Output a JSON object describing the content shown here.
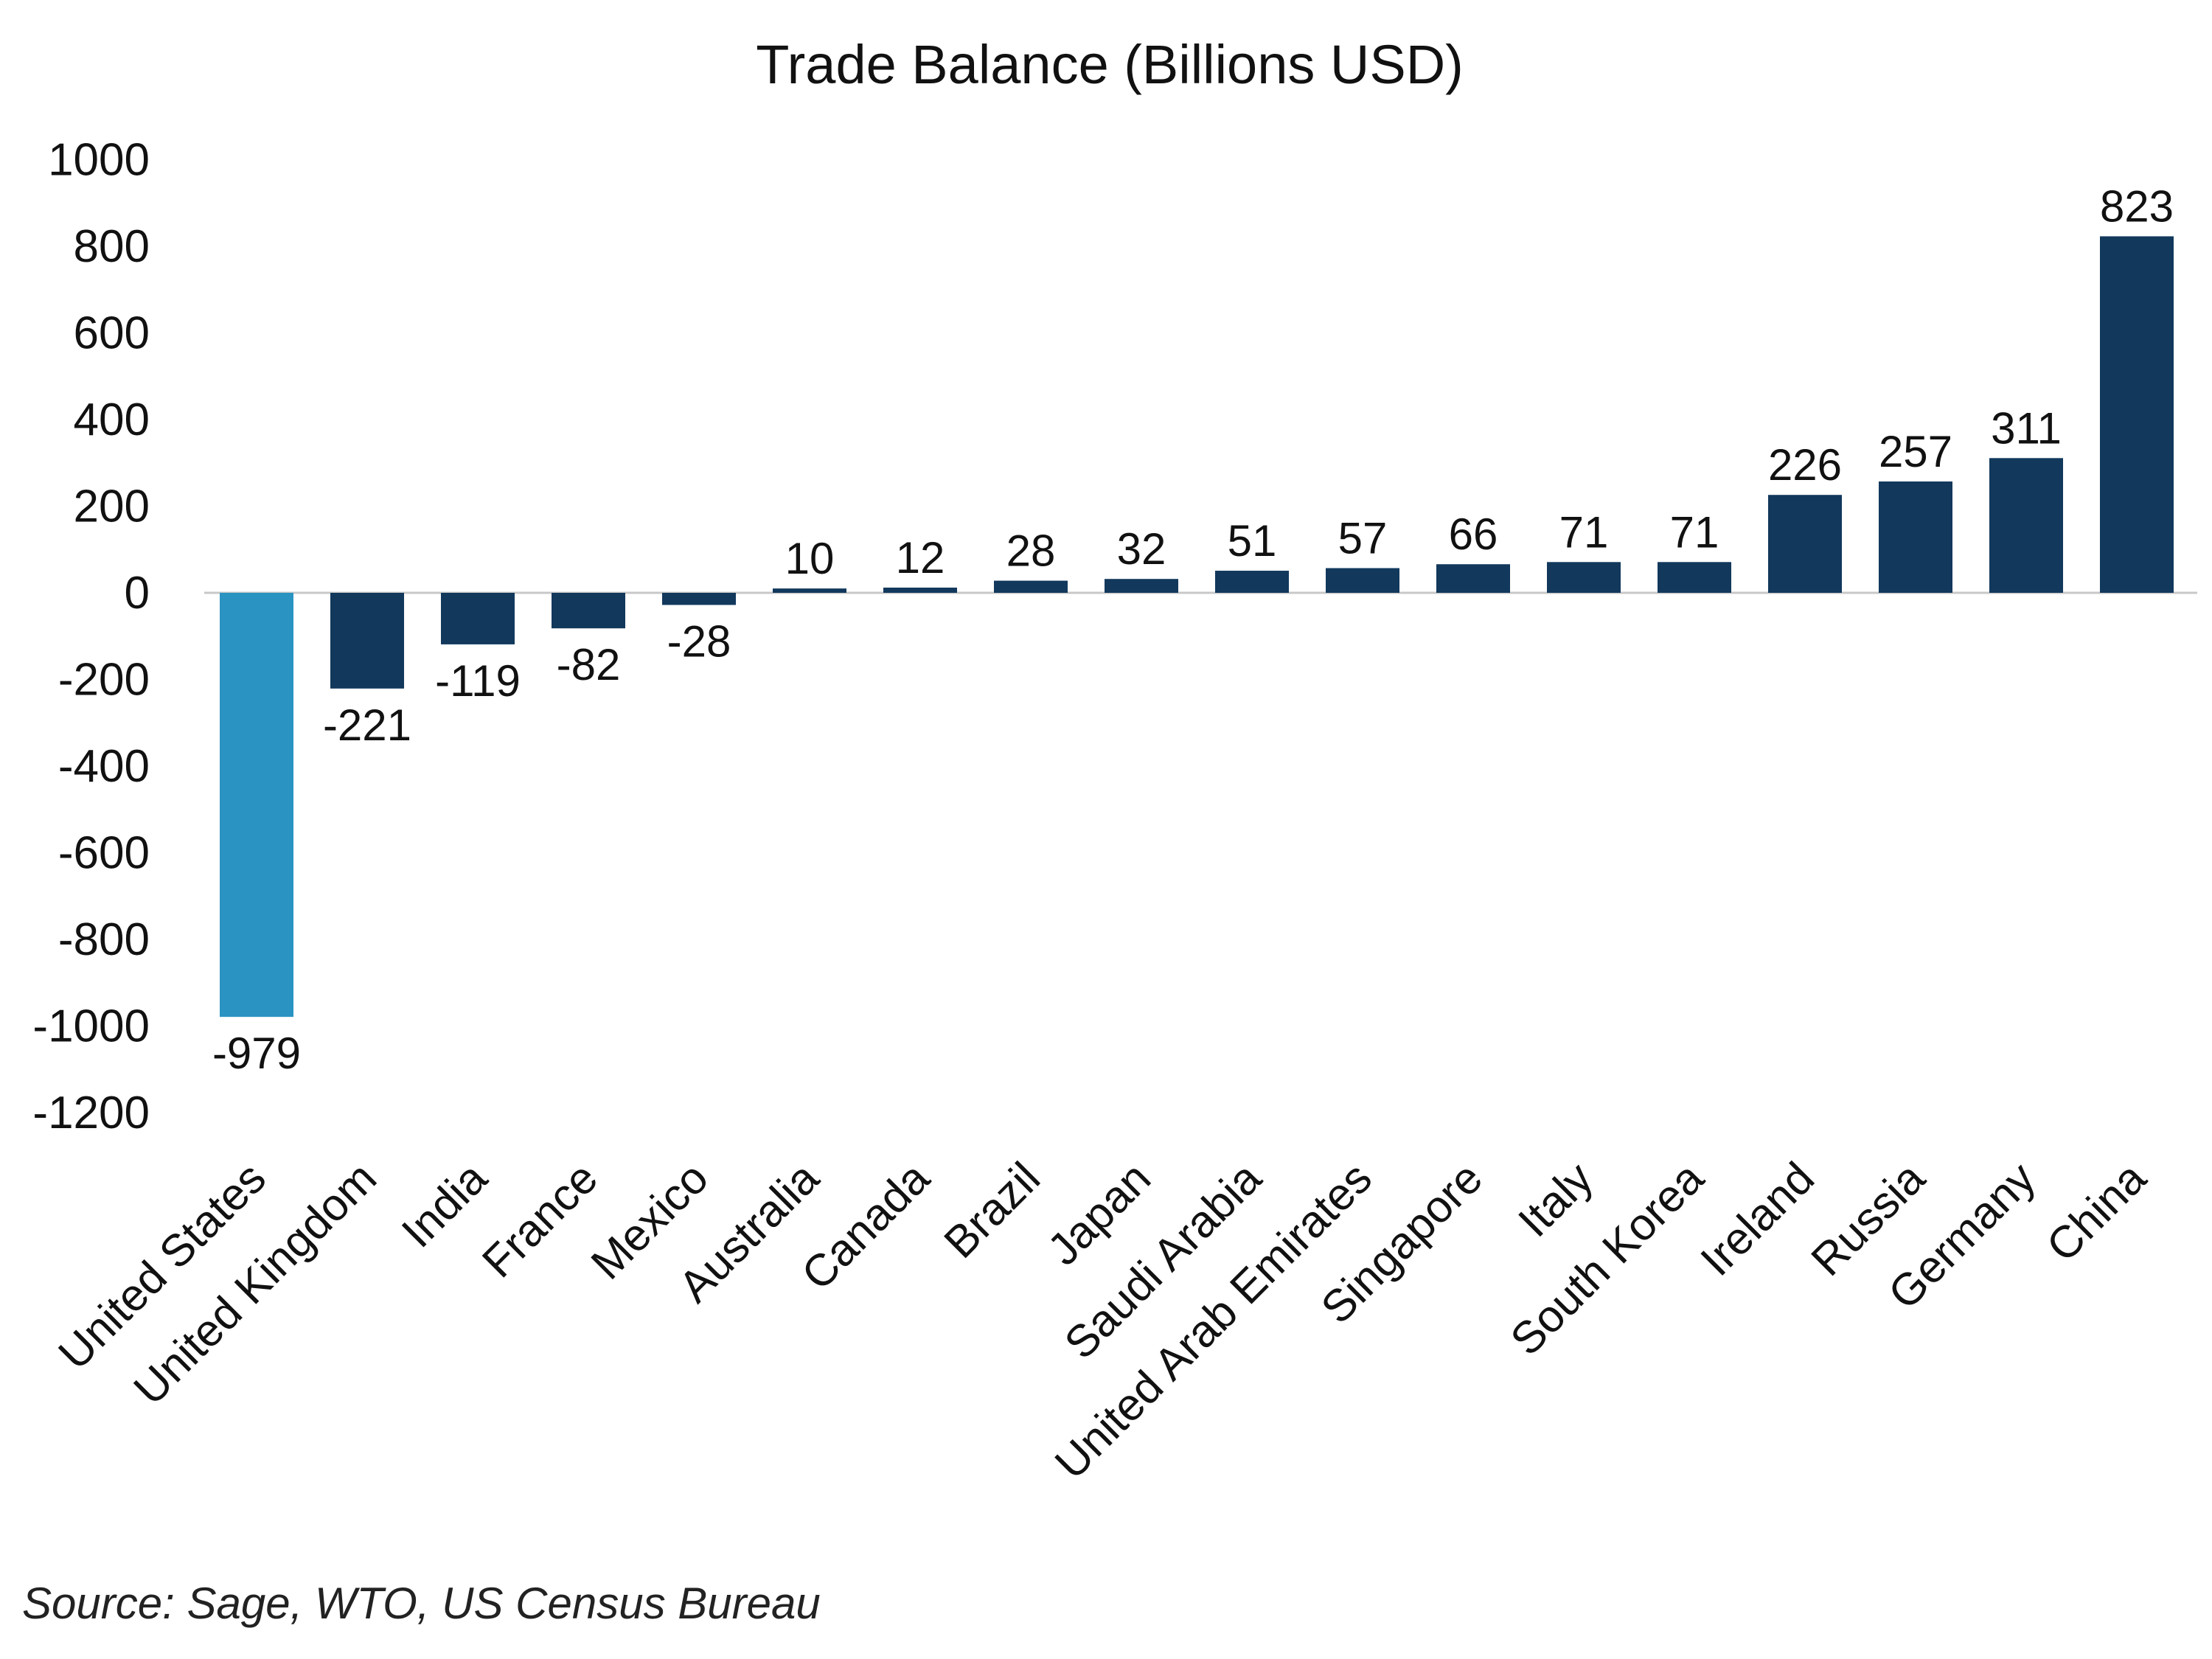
{
  "chart_data": {
    "type": "bar",
    "title": "Trade Balance (Billions USD)",
    "xlabel": "",
    "ylabel": "",
    "ylim": [
      -1200,
      1000
    ],
    "yticks": [
      1000,
      800,
      600,
      400,
      200,
      0,
      -200,
      -400,
      -600,
      -800,
      -1000,
      -1200
    ],
    "categories": [
      "United States",
      "United Kingdom",
      "India",
      "France",
      "Mexico",
      "Australia",
      "Canada",
      "Brazil",
      "Japan",
      "Saudi Arabia",
      "United Arab Emirates",
      "Singapore",
      "Italy",
      "South Korea",
      "Ireland",
      "Russia",
      "Germany",
      "China"
    ],
    "values": [
      -979,
      -221,
      -119,
      -82,
      -28,
      10,
      12,
      28,
      32,
      51,
      57,
      66,
      71,
      71,
      226,
      257,
      311,
      823
    ],
    "data_labels": [
      "-979",
      "-221",
      "-119",
      "-82",
      "-28",
      "10",
      "12",
      "28",
      "32",
      "51",
      "57",
      "66",
      "71",
      "71",
      "226",
      "257",
      "311",
      "823"
    ],
    "highlight_category": "United States",
    "grid": false,
    "legend": "none",
    "colors": {
      "bar": "#12385C",
      "highlight": "#2A93C2",
      "zero_line": "#C8C8C8"
    }
  },
  "source": "Source: Sage, WTO, US Census Bureau"
}
